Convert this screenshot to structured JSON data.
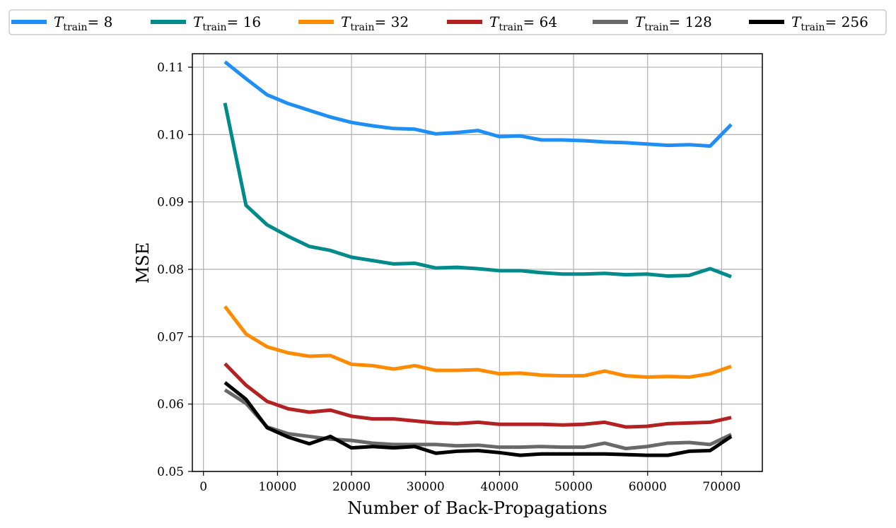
{
  "chart_data": {
    "type": "line",
    "title": "",
    "xlabel": "Number of Back-Propagations",
    "ylabel": "MSE",
    "xlim": [
      -1500,
      75500
    ],
    "ylim": [
      0.05,
      0.112
    ],
    "xticks": [
      0,
      10000,
      20000,
      30000,
      40000,
      50000,
      60000,
      70000
    ],
    "xtick_labels": [
      "0",
      "10000",
      "20000",
      "30000",
      "40000",
      "50000",
      "60000",
      "70000"
    ],
    "yticks": [
      0.05,
      0.06,
      0.07,
      0.08,
      0.09,
      0.1,
      0.11
    ],
    "ytick_labels": [
      "0.05",
      "0.06",
      "0.07",
      "0.08",
      "0.09",
      "0.10",
      "0.11"
    ],
    "grid": true,
    "legend_position": "top, outside the plot, single row",
    "x": [
      2900,
      5750,
      8600,
      11450,
      14300,
      17150,
      20000,
      22850,
      25700,
      28550,
      31400,
      34250,
      37100,
      39950,
      42800,
      45650,
      48500,
      51350,
      54200,
      57050,
      59900,
      62750,
      65600,
      68450,
      71300
    ],
    "series": [
      {
        "legend_base": "T",
        "legend_sub": "train",
        "legend_value": "= 8",
        "color": "#1f8ff5",
        "values": [
          0.1108,
          0.1083,
          0.1059,
          0.1046,
          0.1036,
          0.1026,
          0.1018,
          0.1013,
          0.1009,
          0.1008,
          0.1001,
          0.1003,
          0.1006,
          0.0997,
          0.0998,
          0.0992,
          0.0992,
          0.0991,
          0.0989,
          0.0988,
          0.0986,
          0.0984,
          0.0985,
          0.0983,
          0.1015
        ]
      },
      {
        "legend_base": "T",
        "legend_sub": "train",
        "legend_value": "= 16",
        "color": "#008b8b",
        "values": [
          0.1047,
          0.0895,
          0.0866,
          0.0849,
          0.0834,
          0.0828,
          0.0818,
          0.0813,
          0.0808,
          0.0809,
          0.0802,
          0.0803,
          0.0801,
          0.0798,
          0.0798,
          0.0795,
          0.0793,
          0.0793,
          0.0794,
          0.0792,
          0.0793,
          0.079,
          0.0791,
          0.0801,
          0.0789
        ]
      },
      {
        "legend_base": "T",
        "legend_sub": "train",
        "legend_value": "= 32",
        "color": "#ff8c00",
        "values": [
          0.0745,
          0.0704,
          0.0685,
          0.0676,
          0.0671,
          0.0672,
          0.0659,
          0.0657,
          0.0652,
          0.0657,
          0.065,
          0.065,
          0.0651,
          0.0645,
          0.0646,
          0.0643,
          0.0642,
          0.0642,
          0.0649,
          0.0642,
          0.064,
          0.0641,
          0.064,
          0.0645,
          0.0656
        ]
      },
      {
        "legend_base": "T",
        "legend_sub": "train",
        "legend_value": "= 64",
        "color": "#b22222",
        "values": [
          0.066,
          0.0628,
          0.0604,
          0.0593,
          0.0588,
          0.0591,
          0.0582,
          0.0578,
          0.0578,
          0.0575,
          0.0572,
          0.0571,
          0.0573,
          0.057,
          0.057,
          0.057,
          0.0569,
          0.057,
          0.0573,
          0.0566,
          0.0567,
          0.0571,
          0.0572,
          0.0573,
          0.058
        ]
      },
      {
        "legend_base": "T",
        "legend_sub": "train",
        "legend_value": "= 128",
        "color": "#696969",
        "values": [
          0.0621,
          0.0601,
          0.0566,
          0.0556,
          0.0552,
          0.0548,
          0.0546,
          0.0542,
          0.054,
          0.054,
          0.054,
          0.0538,
          0.0539,
          0.0536,
          0.0536,
          0.0537,
          0.0536,
          0.0536,
          0.0542,
          0.0534,
          0.0537,
          0.0542,
          0.0543,
          0.054,
          0.0555
        ]
      },
      {
        "legend_base": "T",
        "legend_sub": "train",
        "legend_value": "= 256",
        "color": "#000000",
        "values": [
          0.0632,
          0.0607,
          0.0565,
          0.0551,
          0.0541,
          0.0552,
          0.0535,
          0.0537,
          0.0535,
          0.0537,
          0.0527,
          0.053,
          0.0531,
          0.0528,
          0.0524,
          0.0526,
          0.0526,
          0.0526,
          0.0526,
          0.0525,
          0.0524,
          0.0524,
          0.053,
          0.0531,
          0.0552
        ]
      }
    ]
  }
}
